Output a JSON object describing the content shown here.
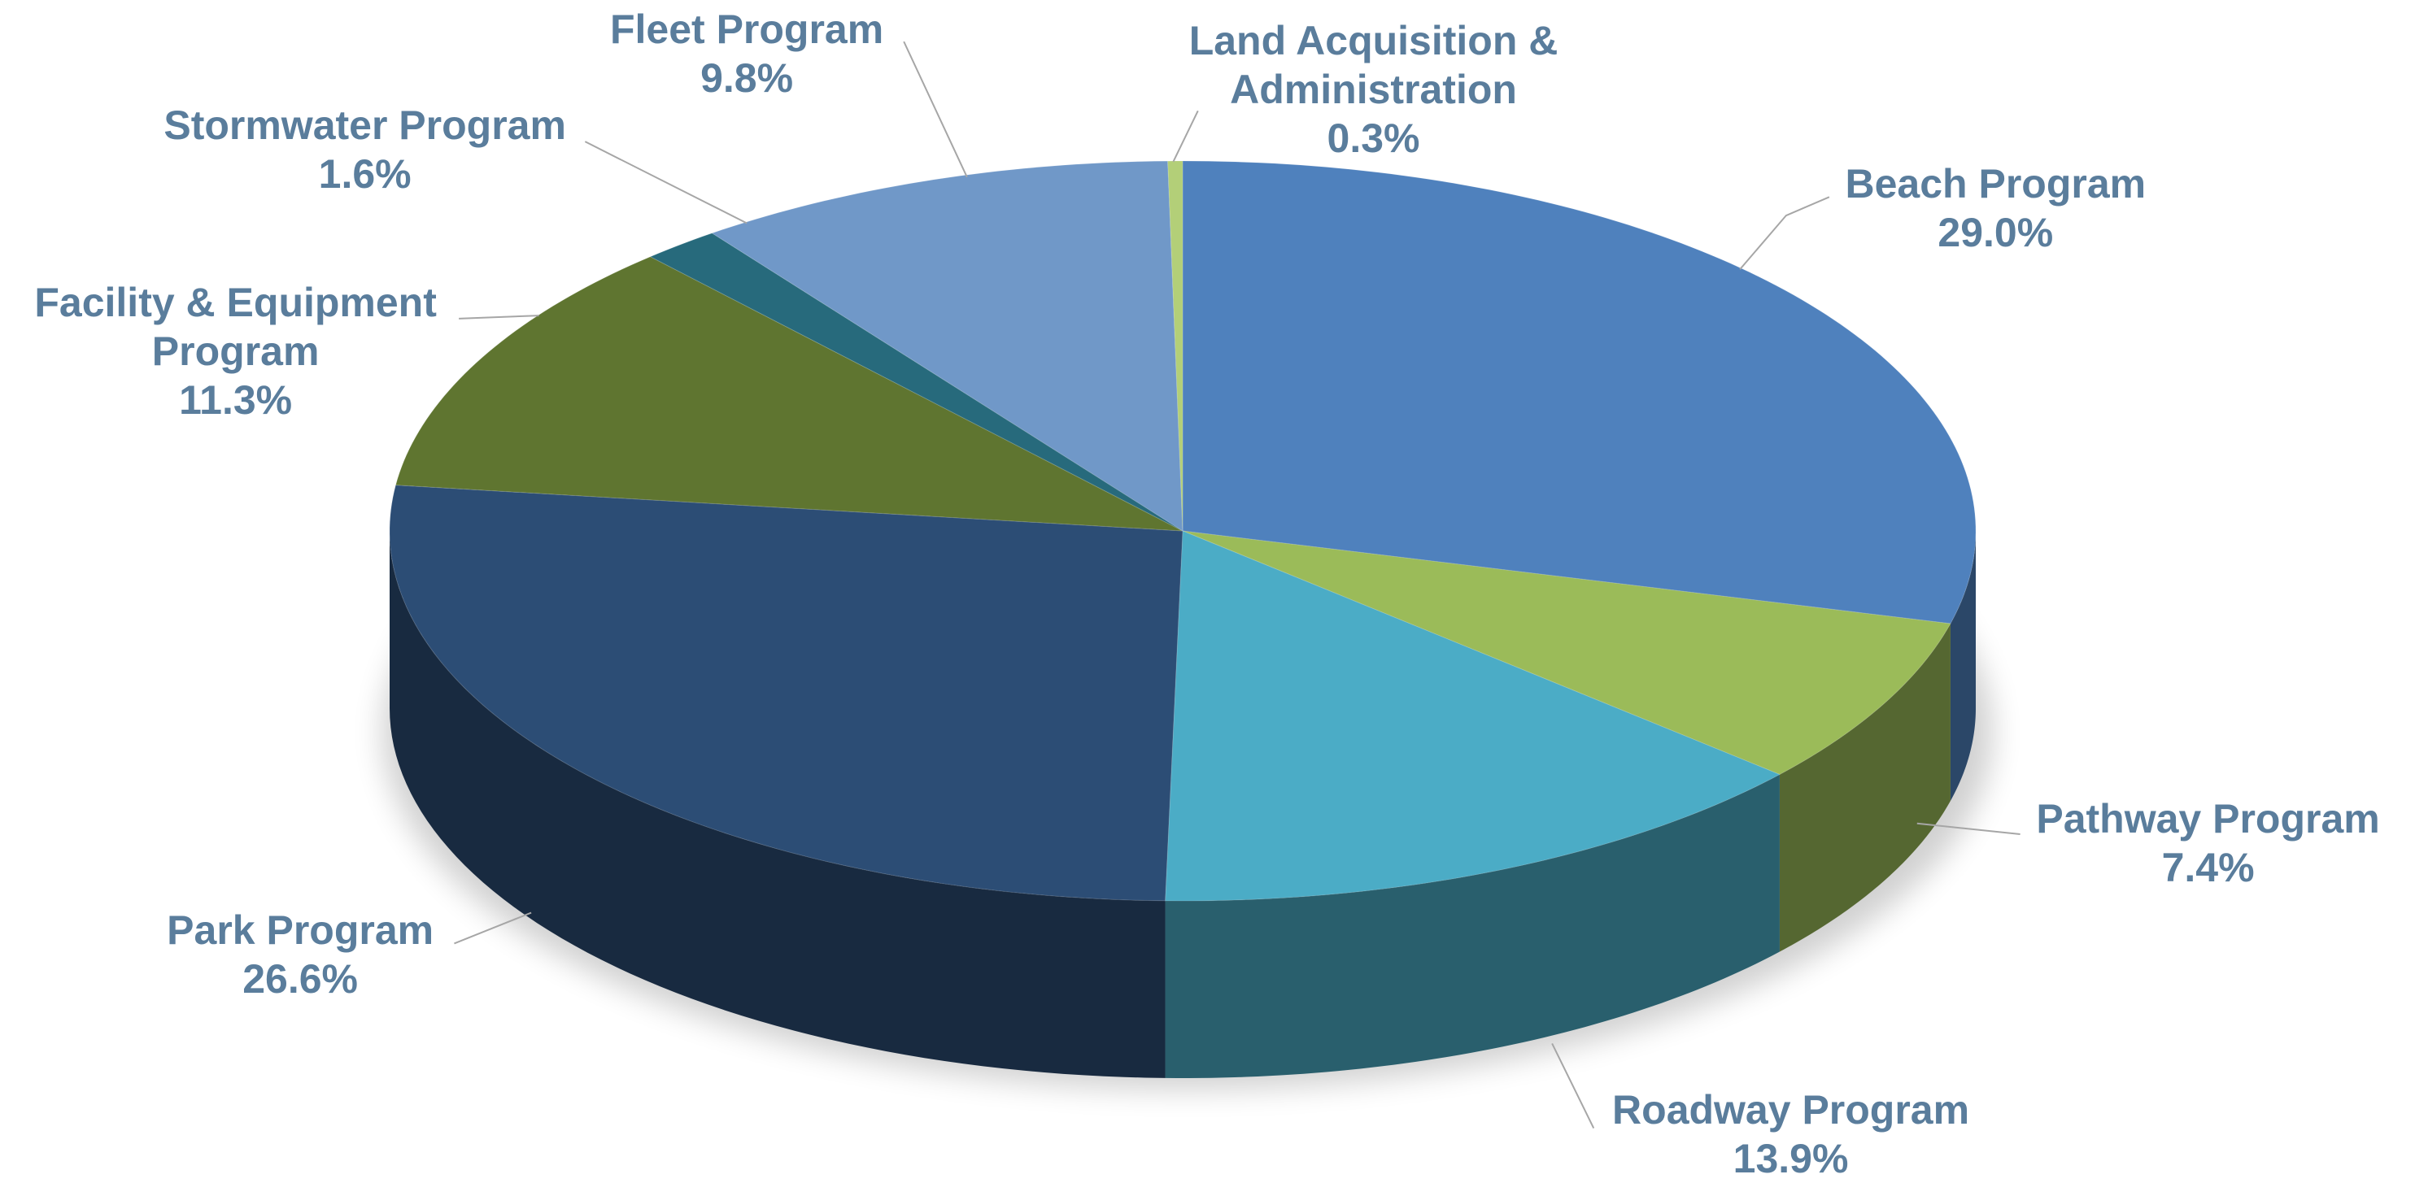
{
  "chart_data": {
    "type": "pie3d",
    "categories": [
      "Beach Program",
      "Pathway Program",
      "Roadway Program",
      "Park Program",
      "Facility & Equipment Program",
      "Stormwater Program",
      "Fleet Program",
      "Land Acquisition & Administration"
    ],
    "values": [
      29.0,
      7.4,
      13.9,
      26.6,
      11.3,
      1.6,
      9.8,
      0.3
    ],
    "value_labels": [
      "29.0%",
      "7.4%",
      "13.9%",
      "26.6%",
      "11.3%",
      "1.6%",
      "9.8%",
      "0.3%"
    ],
    "colors": [
      "#4f81bd",
      "#9bbb59",
      "#4bacc6",
      "#2c4d75",
      "#5f7530",
      "#276a7c",
      "#7098c8",
      "#b3cf78"
    ]
  }
}
